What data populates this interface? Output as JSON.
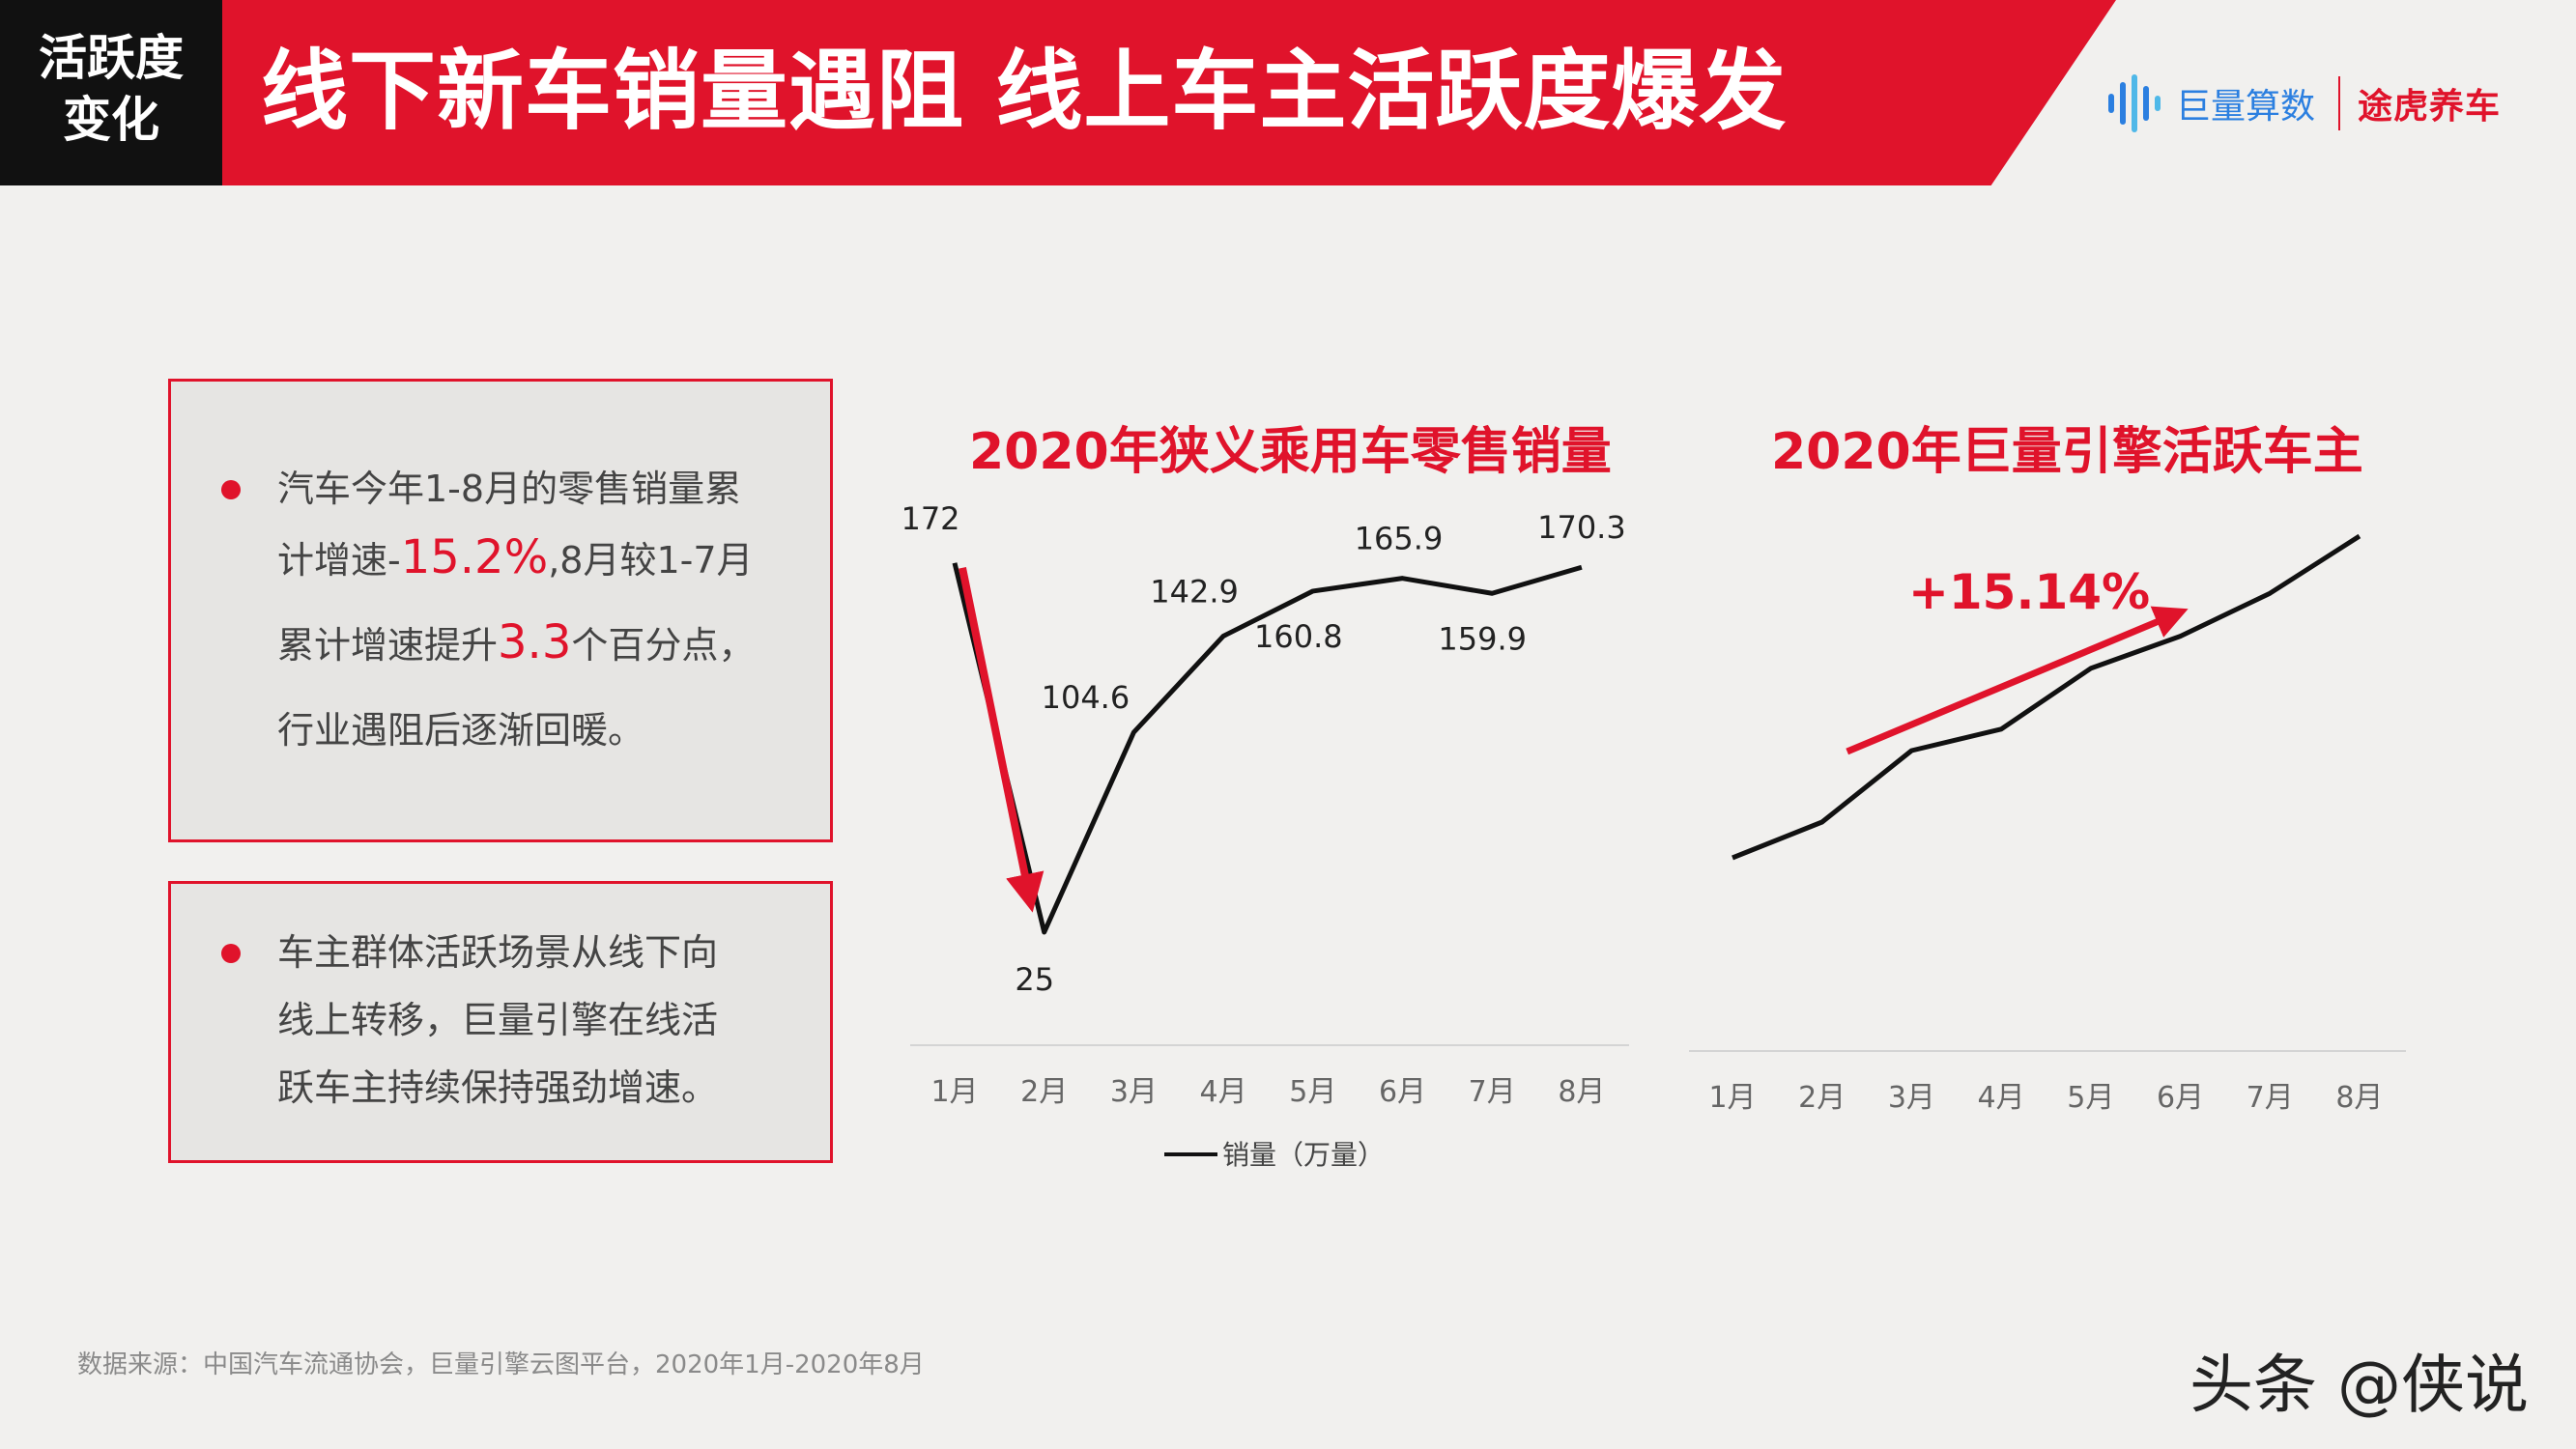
{
  "header": {
    "section_tag_line1": "活跃度",
    "section_tag_line2": "变化",
    "title": "线下新车销量遇阻 线上车主活跃度爆发",
    "logo_juliang": "巨量算数",
    "logo_tuhu": "途虎养车"
  },
  "colors": {
    "brand_red": "#e0132b",
    "logo_blue": "#2b7fe0",
    "line_black": "#111111"
  },
  "bullet1": {
    "line1": "汽车今年1-8月的零售销量累",
    "line2_a": "计增速-",
    "line2_hl": "15.2%",
    "line2_b": ",8月较1-7月",
    "line3_a": "累计增速提升",
    "line3_hl": "3.3",
    "line3_b": "个百分点，",
    "line4": "行业遇阻后逐渐回暖。"
  },
  "bullet2": {
    "line1": "车主群体活跃场景从线下向",
    "line2": "线上转移，巨量引擎在线活",
    "line3": "跃车主持续保持强劲增速。"
  },
  "chart_data": [
    {
      "type": "line",
      "title": "2020年狭义乘用车零售销量",
      "categories": [
        "1月",
        "2月",
        "3月",
        "4月",
        "5月",
        "6月",
        "7月",
        "8月"
      ],
      "series": [
        {
          "name": "销量（万量）",
          "values": [
            172,
            25,
            104.6,
            142.9,
            160.8,
            165.9,
            159.9,
            170.3
          ]
        }
      ],
      "data_labels": [
        "172",
        "25",
        "104.6",
        "142.9",
        "160.8",
        "165.9",
        "159.9",
        "170.3"
      ],
      "ylim": [
        0,
        200
      ],
      "legend": "bottom",
      "annotation": "drop arrow from 1月 to 2月"
    },
    {
      "type": "line",
      "title": "2020年巨量引擎活跃车主",
      "categories": [
        "1月",
        "2月",
        "3月",
        "4月",
        "5月",
        "6月",
        "7月",
        "8月"
      ],
      "series": [
        {
          "values": [
            0.0,
            0.1,
            0.3,
            0.36,
            0.53,
            0.62,
            0.74,
            0.9
          ]
        }
      ],
      "annotation": "+15.14%"
    }
  ],
  "source": "数据来源：中国汽车流通协会，巨量引擎云图平台，2020年1月-2020年8月",
  "watermark": "头条 @侠说"
}
